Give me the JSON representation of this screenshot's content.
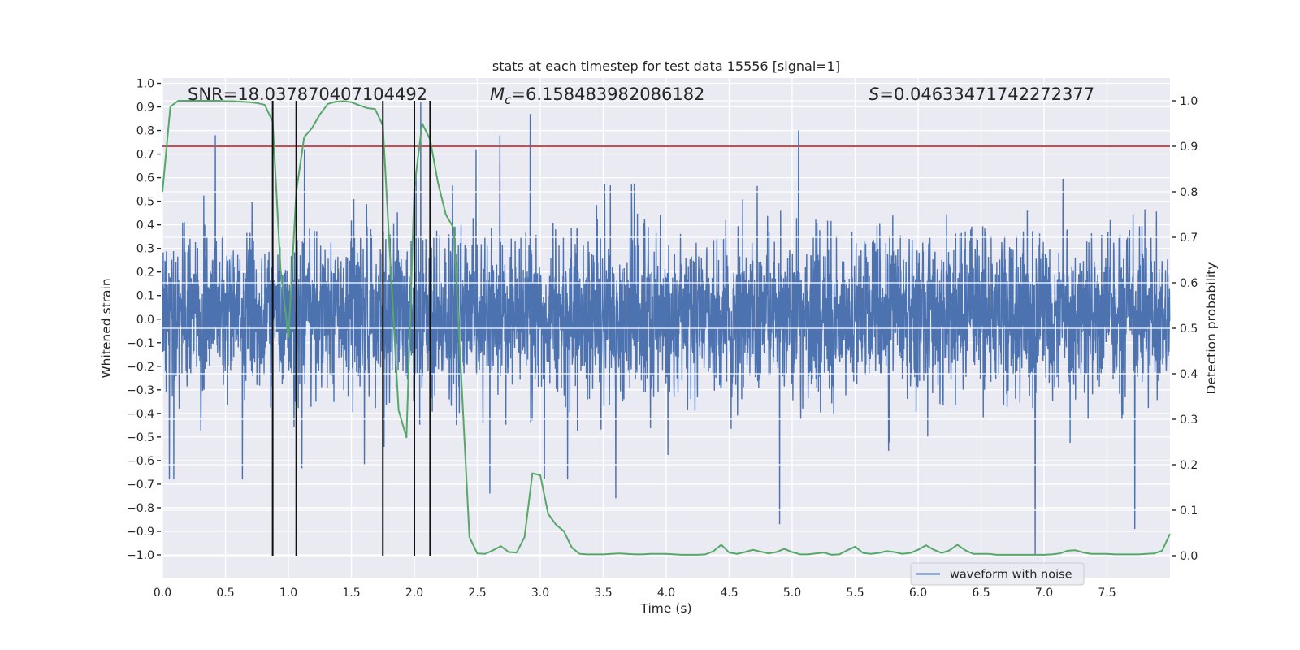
{
  "chart_data": {
    "type": "line",
    "title": "stats at each timestep for test data 15556 [signal=1]",
    "xlabel": "Time (s)",
    "ylabel_left": "Whitened strain",
    "ylabel_right": "Detection probability",
    "xlim": [
      0,
      8
    ],
    "ylim_left": [
      -1.1,
      1.022
    ],
    "ylim_right": [
      -0.05,
      1.05
    ],
    "grid": true,
    "x_ticks": [
      "0.0",
      "0.5",
      "1.0",
      "1.5",
      "2.0",
      "2.5",
      "3.0",
      "3.5",
      "4.0",
      "4.5",
      "5.0",
      "5.5",
      "6.0",
      "6.5",
      "7.0",
      "7.5"
    ],
    "x_tick_values": [
      0,
      0.5,
      1,
      1.5,
      2,
      2.5,
      3,
      3.5,
      4,
      4.5,
      5,
      5.5,
      6,
      6.5,
      7,
      7.5
    ],
    "y_left_ticks": [
      "−1.0",
      "−0.9",
      "−0.8",
      "−0.7",
      "−0.6",
      "−0.5",
      "−0.4",
      "−0.3",
      "−0.2",
      "−0.1",
      "0.0",
      "0.1",
      "0.2",
      "0.3",
      "0.4",
      "0.5",
      "0.6",
      "0.7",
      "0.8",
      "0.9",
      "1.0"
    ],
    "y_left_tick_values": [
      -1.0,
      -0.9,
      -0.8,
      -0.7,
      -0.6,
      -0.5,
      -0.4,
      -0.3,
      -0.2,
      -0.1,
      0.0,
      0.1,
      0.2,
      0.3,
      0.4,
      0.5,
      0.6,
      0.7,
      0.8,
      0.9,
      1.0
    ],
    "y_right_ticks": [
      "0.0",
      "0.1",
      "0.2",
      "0.3",
      "0.4",
      "0.5",
      "0.6",
      "0.7",
      "0.8",
      "0.9",
      "1.0"
    ],
    "y_right_tick_values": [
      0,
      0.1,
      0.2,
      0.3,
      0.4,
      0.5,
      0.6,
      0.7,
      0.8,
      0.9,
      1.0
    ],
    "annotations": {
      "snr": "SNR=18.037870407104492",
      "mc_symbol": "M",
      "mc_subscript": "c",
      "mc_value": "=6.158483982086182",
      "s_symbol": "S",
      "s_value": "=0.04633471742272377"
    },
    "legend": {
      "placement": "lower-right",
      "entries": [
        "waveform with noise"
      ]
    },
    "colors": {
      "waveform": "#4C72B0",
      "probability": "#55A868",
      "threshold": "#C44E52",
      "markers": "#111111",
      "background": "#EAEAF2",
      "grid": "#FFFFFF"
    },
    "waveform": {
      "name": "waveform with noise",
      "axis": "left",
      "sample_rate_hz": 512,
      "duration_s": 8,
      "typical_range": [
        -0.3,
        0.35
      ],
      "peaks": [
        {
          "t": 0.42,
          "v": 0.78
        },
        {
          "t": 2.05,
          "v": 0.92
        },
        {
          "t": 2.92,
          "v": 0.87
        },
        {
          "t": 5.05,
          "v": 0.8
        },
        {
          "t": 7.72,
          "v": 0.86
        },
        {
          "t": 2.68,
          "v": 0.78
        },
        {
          "t": 6.93,
          "v": -1.0
        },
        {
          "t": 7.72,
          "v": -0.89
        },
        {
          "t": 4.9,
          "v": -0.87
        },
        {
          "t": 1.75,
          "v": -0.77
        },
        {
          "t": 2.6,
          "v": -0.74
        },
        {
          "t": 3.6,
          "v": -0.76
        }
      ]
    },
    "threshold": {
      "axis": "right",
      "value": 0.9
    },
    "detection_markers_t": [
      0.875,
      1.0625,
      1.75,
      2.0,
      2.125
    ],
    "probability": {
      "axis": "right",
      "t_step": 0.0625,
      "values": [
        0.8,
        0.987,
        1.0,
        1.0,
        1.0,
        1.0,
        1.0,
        1.0,
        0.999,
        0.999,
        0.998,
        0.997,
        0.995,
        0.991,
        0.954,
        0.63,
        0.48,
        0.8,
        0.92,
        0.94,
        0.97,
        0.993,
        0.998,
        0.999,
        0.997,
        0.99,
        0.984,
        0.982,
        0.946,
        0.63,
        0.32,
        0.26,
        0.81,
        0.95,
        0.915,
        0.82,
        0.75,
        0.72,
        0.38,
        0.041,
        0.005,
        0.004,
        0.012,
        0.021,
        0.008,
        0.007,
        0.041,
        0.181,
        0.177,
        0.092,
        0.068,
        0.054,
        0.018,
        0.004,
        0.003,
        0.003,
        0.003,
        0.004,
        0.005,
        0.004,
        0.003,
        0.003,
        0.004,
        0.004,
        0.004,
        0.003,
        0.002,
        0.002,
        0.002,
        0.003,
        0.01,
        0.024,
        0.007,
        0.004,
        0.008,
        0.013,
        0.009,
        0.005,
        0.008,
        0.015,
        0.008,
        0.003,
        0.003,
        0.005,
        0.007,
        0.002,
        0.003,
        0.012,
        0.02,
        0.006,
        0.004,
        0.006,
        0.01,
        0.008,
        0.004,
        0.006,
        0.013,
        0.023,
        0.013,
        0.006,
        0.012,
        0.024,
        0.012,
        0.004,
        0.004,
        0.004,
        0.002,
        0.002,
        0.002,
        0.002,
        0.002,
        0.002,
        0.002,
        0.003,
        0.005,
        0.011,
        0.012,
        0.007,
        0.004,
        0.004,
        0.004,
        0.003,
        0.003,
        0.003,
        0.003,
        0.004,
        0.005,
        0.011,
        0.048
      ]
    }
  }
}
